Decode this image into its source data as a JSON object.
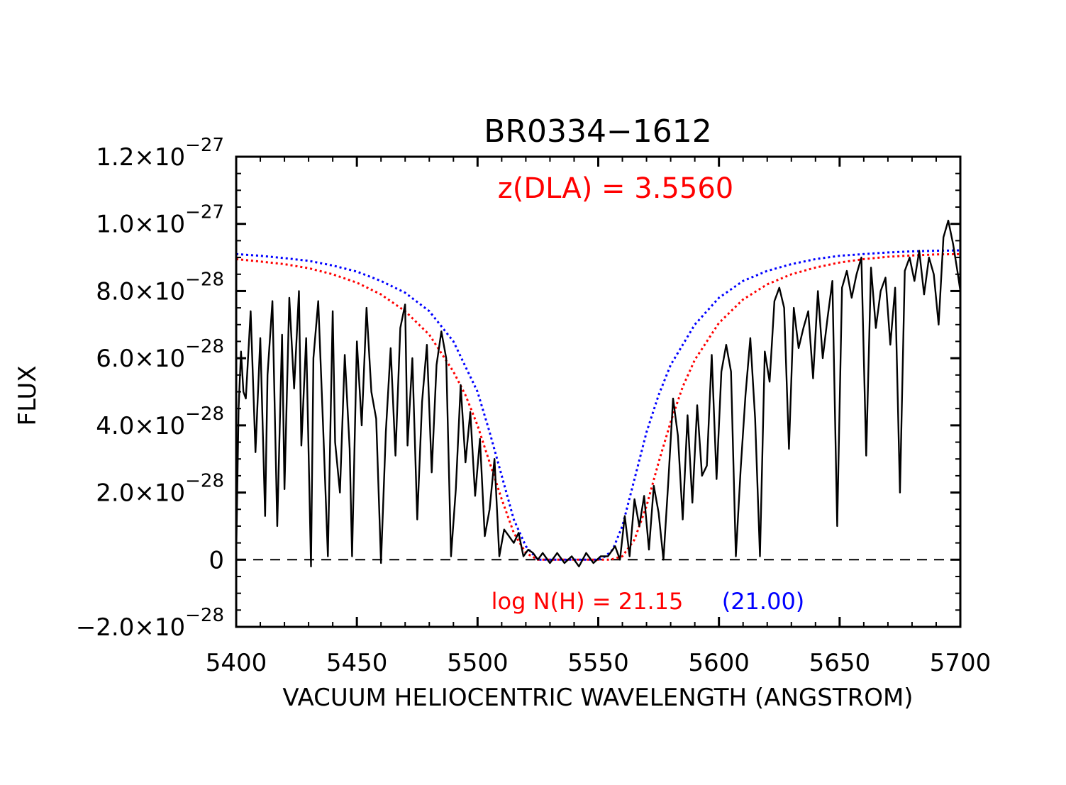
{
  "chart_data": {
    "type": "line",
    "title": "BR0334−1612",
    "xlabel": "VACUUM HELIOCENTRIC WAVELENGTH (ANGSTROM)",
    "ylabel": "FLUX",
    "xlim": [
      5400,
      5700
    ],
    "ylim": [
      -2e-28,
      1.2e-27
    ],
    "x_ticks": [
      {
        "value": 5400,
        "label": "5400"
      },
      {
        "value": 5450,
        "label": "5450"
      },
      {
        "value": 5500,
        "label": "5500"
      },
      {
        "value": 5550,
        "label": "5550"
      },
      {
        "value": 5600,
        "label": "5600"
      },
      {
        "value": 5650,
        "label": "5650"
      },
      {
        "value": 5700,
        "label": "5700"
      }
    ],
    "y_ticks": [
      {
        "value": -2e-28,
        "mantissa": "−2.0×10",
        "exponent": "−28"
      },
      {
        "value": 0,
        "mantissa": "0",
        "exponent": ""
      },
      {
        "value": 2e-28,
        "mantissa": "2.0×10",
        "exponent": "−28"
      },
      {
        "value": 4e-28,
        "mantissa": "4.0×10",
        "exponent": "−28"
      },
      {
        "value": 6e-28,
        "mantissa": "6.0×10",
        "exponent": "−28"
      },
      {
        "value": 8e-28,
        "mantissa": "8.0×10",
        "exponent": "−28"
      },
      {
        "value": 1e-27,
        "mantissa": "1.0×10",
        "exponent": "−27"
      },
      {
        "value": 1.2e-27,
        "mantissa": "1.2×10",
        "exponent": "−27"
      }
    ],
    "annotations": {
      "z_dla": "z(DLA) = 3.5560",
      "log_nh": "log N(H) = 21.15",
      "log_nh_alt": "(21.00)"
    },
    "colors": {
      "spectrum": "#000000",
      "fit_primary": "#ff0000",
      "fit_alt": "#0000ff",
      "zero_line": "#000000"
    },
    "series": [
      {
        "style": "solid",
        "color": "#000000",
        "x": [
          5400,
          5401,
          5402,
          5403,
          5404,
          5406,
          5408,
          5410,
          5412,
          5413,
          5415,
          5417,
          5419,
          5420,
          5422,
          5424,
          5426,
          5427,
          5429,
          5431,
          5432,
          5434,
          5436,
          5438,
          5440,
          5441,
          5443,
          5445,
          5447,
          5448,
          5450,
          5452,
          5454,
          5456,
          5458,
          5460,
          5462,
          5464,
          5466,
          5468,
          5470,
          5471,
          5473,
          5475,
          5477,
          5479,
          5481,
          5483,
          5485,
          5487,
          5489,
          5491,
          5493,
          5495,
          5497,
          5499,
          5501,
          5503,
          5505,
          5507,
          5509,
          5511,
          5513,
          5515,
          5517,
          5519,
          5521,
          5523,
          5525,
          5527,
          5530,
          5533,
          5536,
          5539,
          5542,
          5545,
          5548,
          5551,
          5554,
          5557,
          5559,
          5561,
          5563,
          5565,
          5567,
          5569,
          5571,
          5573,
          5575,
          5577,
          5579,
          5581,
          5583,
          5585,
          5587,
          5589,
          5591,
          5593,
          5595,
          5597,
          5599,
          5601,
          5603,
          5605,
          5607,
          5609,
          5611,
          5613,
          5615,
          5617,
          5619,
          5621,
          5623,
          5625,
          5627,
          5629,
          5631,
          5633,
          5635,
          5637,
          5639,
          5641,
          5643,
          5645,
          5647,
          5649,
          5651,
          5653,
          5655,
          5657,
          5659,
          5661,
          5663,
          5665,
          5667,
          5669,
          5671,
          5673,
          5675,
          5677,
          5679,
          5681,
          5683,
          5685,
          5687,
          5689,
          5691,
          5693,
          5695,
          5697,
          5699,
          5700
        ],
        "y": [
          1e-29,
          4.5e-28,
          6.2e-28,
          5e-28,
          4.8e-28,
          7.4e-28,
          3.2e-28,
          6.6e-28,
          1.3e-28,
          5.5e-28,
          7.7e-28,
          1e-28,
          6.7e-28,
          2.1e-28,
          7.8e-28,
          5.1e-28,
          8e-28,
          3.4e-28,
          6.6e-28,
          -2e-29,
          6e-28,
          7.7e-28,
          4e-28,
          1e-29,
          7.4e-28,
          3.5e-28,
          2e-28,
          6.1e-28,
          3.3e-28,
          1e-29,
          6.5e-28,
          4e-28,
          7.5e-28,
          5e-28,
          4.2e-28,
          -1e-29,
          3.8e-28,
          6.3e-28,
          3.1e-28,
          6.9e-28,
          7.6e-28,
          3.4e-28,
          6e-28,
          1.2e-28,
          4.7e-28,
          6.4e-28,
          2.6e-28,
          5.8e-28,
          6.8e-28,
          6e-28,
          1e-29,
          2.1e-28,
          5.2e-28,
          2.9e-28,
          4.4e-28,
          1.9e-28,
          3.6e-28,
          7e-29,
          1.5e-28,
          3e-28,
          1e-29,
          9e-29,
          7e-29,
          5e-29,
          8e-29,
          1e-29,
          3e-29,
          2e-29,
          0,
          2e-29,
          -1e-29,
          2e-29,
          -1e-29,
          1e-29,
          -2e-29,
          2e-29,
          -1e-29,
          1e-29,
          1e-29,
          4e-29,
          0,
          1.3e-28,
          1e-29,
          1.8e-28,
          1e-28,
          1.9e-28,
          3e-29,
          2.2e-28,
          1.4e-28,
          0,
          2.3e-28,
          4.8e-28,
          3.7e-28,
          1.2e-28,
          4.3e-28,
          1.7e-28,
          4.6e-28,
          2.5e-28,
          2.8e-28,
          6.1e-28,
          2.4e-28,
          5.6e-28,
          6.4e-28,
          5.6e-28,
          1e-29,
          2.7e-28,
          4.9e-28,
          6.6e-28,
          4.2e-28,
          1e-29,
          6.2e-28,
          5.3e-28,
          7.7e-28,
          8.1e-28,
          7.5e-28,
          3.3e-28,
          7.5e-28,
          6.3e-28,
          6.9e-28,
          7.4e-28,
          5.4e-28,
          8e-28,
          6e-28,
          7.2e-28,
          8.3e-28,
          1e-28,
          8.1e-28,
          8.6e-28,
          7.8e-28,
          8.5e-28,
          9e-28,
          3.1e-28,
          8.7e-28,
          6.9e-28,
          8e-28,
          8.4e-28,
          6.4e-28,
          8.1e-28,
          2e-28,
          8.6e-28,
          9e-28,
          8.3e-28,
          9.2e-28,
          7.9e-28,
          9e-28,
          8.5e-28,
          7e-28,
          9.6e-28,
          1.01e-27,
          9.4e-28,
          8.5e-28,
          8e-28
        ]
      },
      {
        "name": "21.15",
        "style": "dotted",
        "color": "#ff0000",
        "x": [
          5400,
          5410,
          5420,
          5430,
          5440,
          5450,
          5460,
          5470,
          5480,
          5490,
          5495,
          5500,
          5505,
          5510,
          5515,
          5520,
          5525,
          5530,
          5540,
          5550,
          5555,
          5560,
          5565,
          5570,
          5575,
          5580,
          5585,
          5590,
          5600,
          5610,
          5620,
          5630,
          5640,
          5650,
          5660,
          5670,
          5680,
          5690,
          5700
        ],
        "y": [
          8.95e-28,
          8.88e-28,
          8.8e-28,
          8.68e-28,
          8.5e-28,
          8.25e-28,
          7.9e-28,
          7.4e-28,
          6.7e-28,
          5.6e-28,
          4.9e-28,
          4e-28,
          2.9e-28,
          1.8e-28,
          8e-29,
          2e-29,
          0,
          0,
          0,
          0,
          0,
          1e-29,
          6e-29,
          1.6e-28,
          2.9e-28,
          4.1e-28,
          5.15e-28,
          5.95e-28,
          7.05e-28,
          7.75e-28,
          8.2e-28,
          8.5e-28,
          8.7e-28,
          8.85e-28,
          8.95e-28,
          9.02e-28,
          9.06e-28,
          9.09e-28,
          9.1e-28
        ]
      },
      {
        "name": "21.00",
        "style": "dotted",
        "color": "#0000ff",
        "x": [
          5400,
          5410,
          5420,
          5430,
          5440,
          5450,
          5460,
          5470,
          5480,
          5490,
          5500,
          5505,
          5510,
          5515,
          5520,
          5525,
          5530,
          5540,
          5550,
          5553,
          5556,
          5560,
          5565,
          5570,
          5575,
          5580,
          5590,
          5600,
          5610,
          5620,
          5630,
          5640,
          5650,
          5660,
          5670,
          5680,
          5690,
          5700
        ],
        "y": [
          9.1e-28,
          9.05e-28,
          8.98e-28,
          8.9e-28,
          8.76e-28,
          8.58e-28,
          8.3e-28,
          7.95e-28,
          7.4e-28,
          6.5e-28,
          5e-28,
          3.8e-28,
          2.5e-28,
          1.2e-28,
          4e-29,
          0,
          0,
          0,
          0,
          1e-29,
          3e-29,
          1e-28,
          2.4e-28,
          3.8e-28,
          4.9e-28,
          5.8e-28,
          7e-28,
          7.8e-28,
          8.3e-28,
          8.6e-28,
          8.8e-28,
          8.95e-28,
          9.05e-28,
          9.1e-28,
          9.15e-28,
          9.18e-28,
          9.2e-28,
          9.21e-28
        ]
      }
    ],
    "zero_line": {
      "y": 0,
      "style": "dashed"
    }
  }
}
